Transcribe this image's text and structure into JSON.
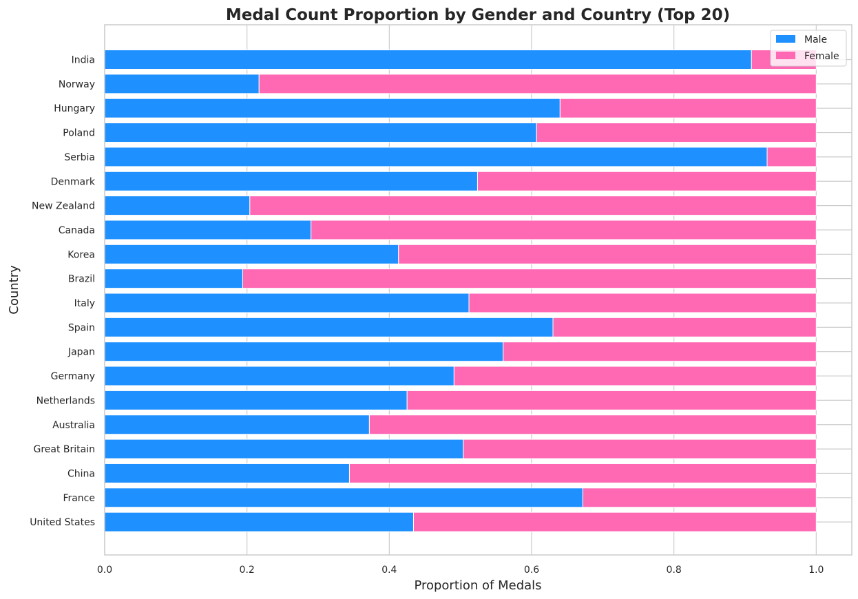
{
  "chart_data": {
    "type": "bar",
    "orientation": "horizontal",
    "stacked": true,
    "title": "Medal Count Proportion by Gender and Country (Top 20)",
    "xlabel": "Proportion of Medals",
    "ylabel": "Country",
    "xlim": [
      0,
      1.05
    ],
    "xticks": [
      "0.0",
      "0.2",
      "0.4",
      "0.6",
      "0.8",
      "1.0"
    ],
    "grid": true,
    "legend_position": "top-right",
    "categories": [
      "India",
      "Norway",
      "Hungary",
      "Poland",
      "Serbia",
      "Denmark",
      "New Zealand",
      "Canada",
      "Korea",
      "Brazil",
      "Italy",
      "Spain",
      "Japan",
      "Germany",
      "Netherlands",
      "Australia",
      "Great Britain",
      "China",
      "France",
      "United States"
    ],
    "series": [
      {
        "name": "Male",
        "color": "#1e90ff",
        "values": [
          0.909,
          0.217,
          0.64,
          0.607,
          0.931,
          0.524,
          0.204,
          0.29,
          0.413,
          0.194,
          0.512,
          0.63,
          0.56,
          0.491,
          0.425,
          0.372,
          0.504,
          0.344,
          0.672,
          0.434
        ]
      },
      {
        "name": "Female",
        "color": "#ff69b4",
        "values": [
          0.091,
          0.783,
          0.36,
          0.393,
          0.069,
          0.476,
          0.796,
          0.71,
          0.587,
          0.806,
          0.488,
          0.37,
          0.44,
          0.509,
          0.575,
          0.628,
          0.496,
          0.656,
          0.328,
          0.566
        ]
      }
    ]
  }
}
